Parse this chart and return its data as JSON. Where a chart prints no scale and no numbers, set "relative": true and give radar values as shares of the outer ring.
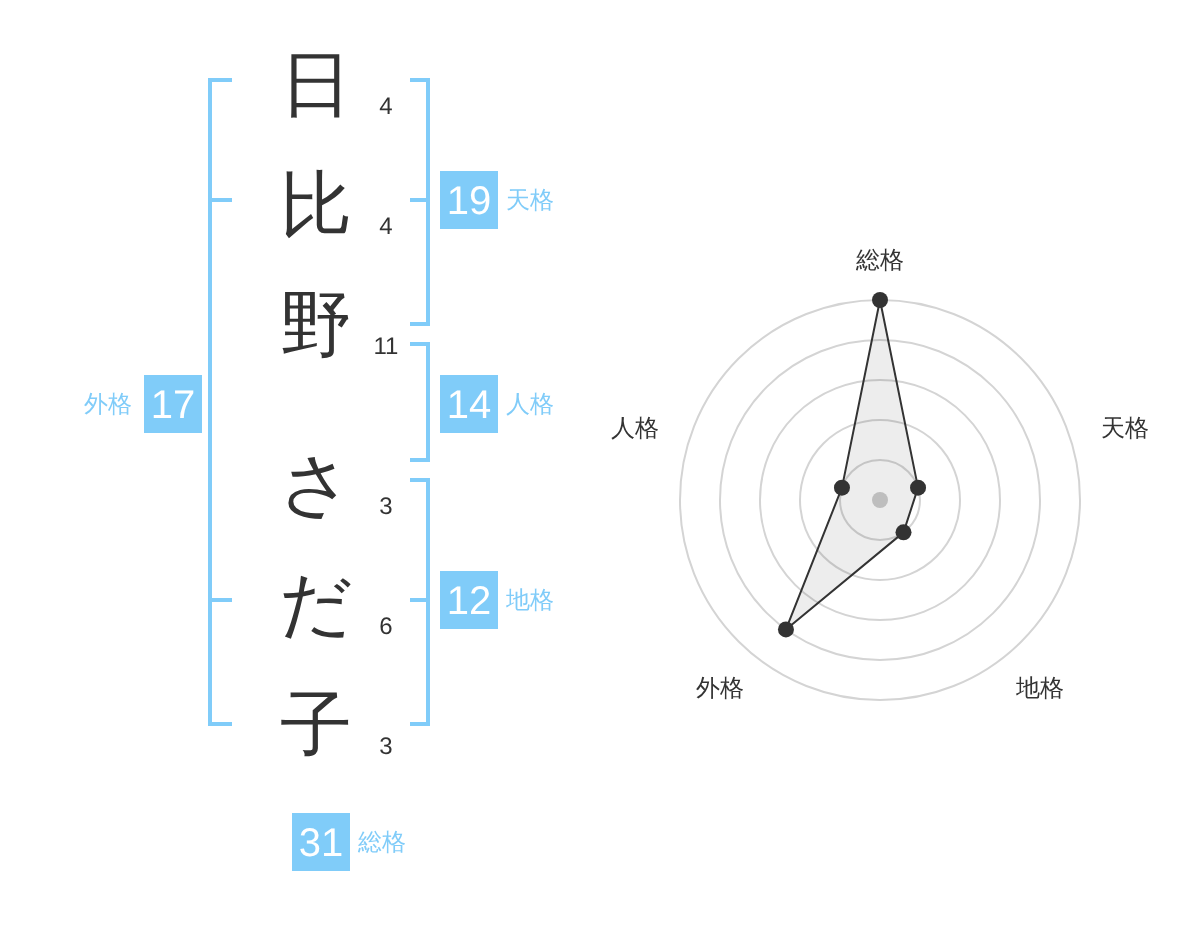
{
  "chart_data": [
    {
      "type": "other",
      "categories": [
        "日",
        "比",
        "野",
        "さ",
        "だ",
        "子"
      ],
      "values": [
        4,
        4,
        11,
        3,
        6,
        3
      ],
      "data_labels": true,
      "color": "#80ccf9",
      "annotations": [
        "19",
        "天格",
        "17",
        "外格",
        "14",
        "人格",
        "12",
        "地格",
        "31",
        "総格"
      ]
    },
    {
      "type": "radar",
      "categories": [
        "総格",
        "天格",
        "地格",
        "外格",
        "人格"
      ],
      "relative": true,
      "grid": true,
      "marker": "circle",
      "series": [
        {
          "color": "#333333",
          "values": [
            1,
            0.2,
            0.2,
            0.8,
            0.2
          ]
        }
      ]
    }
  ]
}
